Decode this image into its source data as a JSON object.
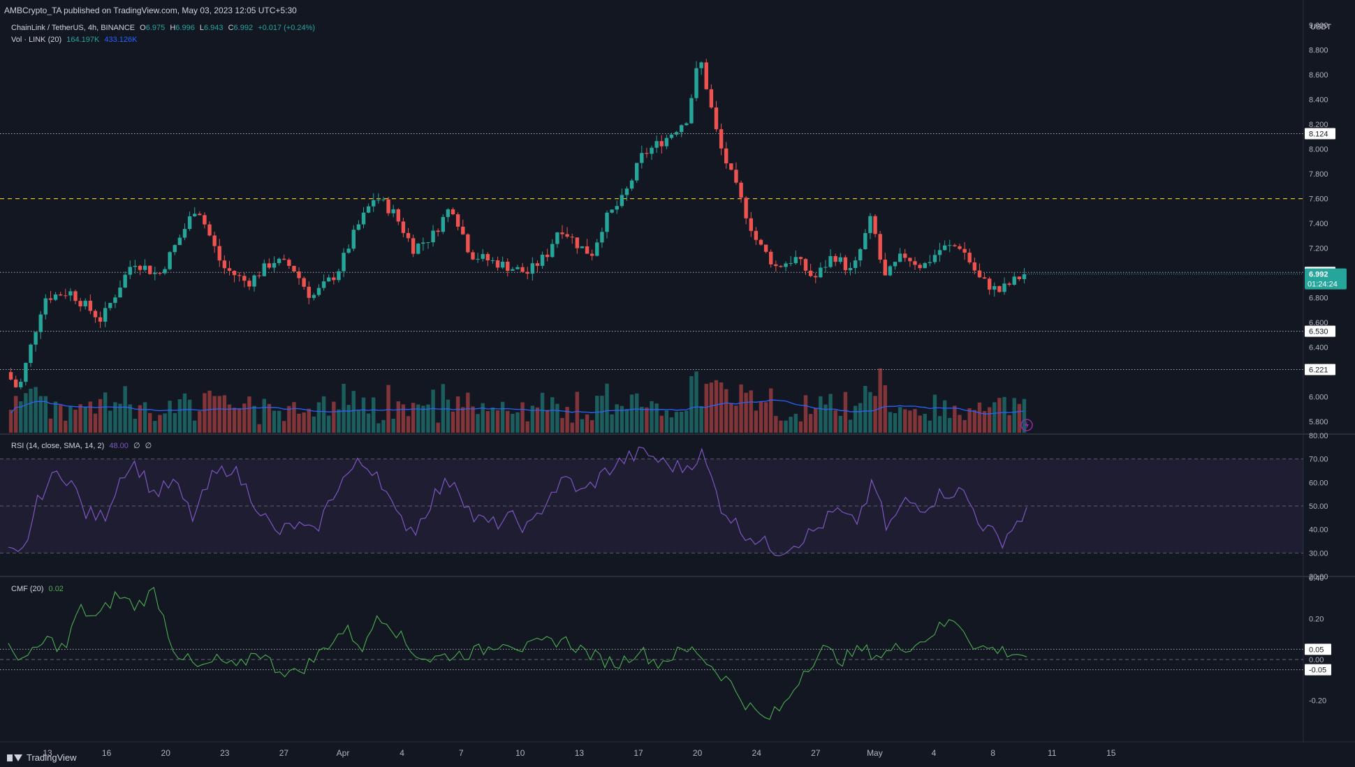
{
  "header": {
    "publish": "AMBCrypto_TA published on TradingView.com, May 03, 2023 12:05 UTC+5:30",
    "symbol": "ChainLink / TetherUS, 4h, BINANCE",
    "o_label": "O",
    "o_val": "6.975",
    "h_label": "H",
    "h_val": "6.996",
    "l_label": "L",
    "l_val": "6.943",
    "c_label": "C",
    "c_val": "6.992",
    "change": "+0.017 (+0.24%)",
    "vol_label": "Vol · LINK (20)",
    "vol_val": "164.197K",
    "vol_ma": "433.126K",
    "rsi_label": "RSI (14, close, SMA, 14, 2)",
    "rsi_val": "48.00",
    "rsi_na1": "∅",
    "rsi_na2": "∅",
    "cmf_label": "CMF (20)",
    "cmf_val": "0.02"
  },
  "footer": {
    "brand": "TradingView"
  },
  "colors": {
    "bg": "#131722",
    "up": "#26a69a",
    "down": "#ef5350",
    "rsi": "#7e57c2",
    "cmf": "#4caf50",
    "volma": "#2962ff",
    "level": "#d1d4dc",
    "resistance": "#e6c229"
  },
  "chart_data": [
    {
      "type": "candlestick",
      "title": "ChainLink / TetherUS, 4h, BINANCE",
      "currency": "USDT",
      "ylim": [
        5.7,
        9.0
      ],
      "y_ticks": [
        "9.000",
        "8.800",
        "8.600",
        "8.400",
        "8.200",
        "8.000",
        "7.800",
        "7.600",
        "7.400",
        "7.200",
        "7.000",
        "6.800",
        "6.600",
        "6.400",
        "6.200",
        "6.000",
        "5.800"
      ],
      "x_ticks": [
        "13",
        "16",
        "20",
        "23",
        "27",
        "Apr",
        "4",
        "7",
        "10",
        "13",
        "17",
        "20",
        "24",
        "27",
        "May",
        "4",
        "8",
        "11",
        "15"
      ],
      "price_path": [
        [
          0,
          6.2
        ],
        [
          0.02,
          6.05
        ],
        [
          0.06,
          6.8
        ],
        [
          0.1,
          6.85
        ],
        [
          0.15,
          6.62
        ],
        [
          0.2,
          7.1
        ],
        [
          0.24,
          6.98
        ],
        [
          0.28,
          7.35
        ],
        [
          0.3,
          7.55
        ],
        [
          0.34,
          7.05
        ],
        [
          0.38,
          6.92
        ],
        [
          0.42,
          7.1
        ],
        [
          0.45,
          7.05
        ],
        [
          0.48,
          6.8
        ],
        [
          0.52,
          7.0
        ],
        [
          0.55,
          7.35
        ],
        [
          0.58,
          7.62
        ],
        [
          0.61,
          7.48
        ],
        [
          0.64,
          7.2
        ],
        [
          0.67,
          7.3
        ],
        [
          0.7,
          7.55
        ],
        [
          0.73,
          7.15
        ],
        [
          0.76,
          7.1
        ],
        [
          0.79,
          7.05
        ],
        [
          0.82,
          7.0
        ],
        [
          0.85,
          7.15
        ],
        [
          0.87,
          7.38
        ],
        [
          0.9,
          7.22
        ],
        [
          0.92,
          7.15
        ],
        [
          0.94,
          7.42
        ],
        [
          0.97,
          7.6
        ],
        [
          1.0,
          7.95
        ],
        [
          1.04,
          8.1
        ],
        [
          1.07,
          8.25
        ],
        [
          1.09,
          8.75
        ],
        [
          1.12,
          8.05
        ],
        [
          1.15,
          7.65
        ],
        [
          1.18,
          7.25
        ],
        [
          1.21,
          7.05
        ],
        [
          1.24,
          7.12
        ],
        [
          1.27,
          6.95
        ],
        [
          1.3,
          7.15
        ],
        [
          1.33,
          7.0
        ],
        [
          1.36,
          7.45
        ],
        [
          1.38,
          6.95
        ],
        [
          1.41,
          7.15
        ],
        [
          1.44,
          7.05
        ],
        [
          1.47,
          7.2
        ],
        [
          1.5,
          7.22
        ],
        [
          1.53,
          6.95
        ],
        [
          1.56,
          6.85
        ],
        [
          1.6,
          6.992
        ]
      ],
      "last_price": "6.992",
      "countdown": "01:24:24",
      "levels": [
        {
          "value": 8.124,
          "label": "8.124",
          "style": "dotted"
        },
        {
          "value": 7.6,
          "label": "",
          "style": "dashed-yellow"
        },
        {
          "value": 7.005,
          "label": "7.005",
          "style": "dotted"
        },
        {
          "value": 6.53,
          "label": "6.530",
          "style": "dotted"
        },
        {
          "value": 6.221,
          "label": "6.221",
          "style": "dotted"
        }
      ]
    },
    {
      "type": "bar",
      "title": "Vol · LINK (20)",
      "last_value": "164.197K",
      "ma_value": "433.126K"
    },
    {
      "type": "line",
      "title": "RSI (14, close, SMA, 14, 2)",
      "ylim": [
        20,
        80
      ],
      "y_ticks": [
        "80.00",
        "70.00",
        "60.00",
        "50.00",
        "40.00",
        "30.00",
        "20.00"
      ],
      "bands": [
        70,
        50,
        30
      ],
      "path": [
        [
          0,
          30
        ],
        [
          0.02,
          28
        ],
        [
          0.05,
          55
        ],
        [
          0.08,
          65
        ],
        [
          0.1,
          60
        ],
        [
          0.12,
          47
        ],
        [
          0.15,
          45
        ],
        [
          0.18,
          65
        ],
        [
          0.2,
          68
        ],
        [
          0.23,
          55
        ],
        [
          0.26,
          60
        ],
        [
          0.29,
          45
        ],
        [
          0.32,
          62
        ],
        [
          0.35,
          67
        ],
        [
          0.38,
          55
        ],
        [
          0.42,
          38
        ],
        [
          0.45,
          42
        ],
        [
          0.48,
          38
        ],
        [
          0.52,
          60
        ],
        [
          0.55,
          68
        ],
        [
          0.58,
          65
        ],
        [
          0.61,
          45
        ],
        [
          0.64,
          40
        ],
        [
          0.67,
          55
        ],
        [
          0.7,
          62
        ],
        [
          0.73,
          45
        ],
        [
          0.76,
          42
        ],
        [
          0.79,
          45
        ],
        [
          0.82,
          40
        ],
        [
          0.85,
          55
        ],
        [
          0.88,
          62
        ],
        [
          0.9,
          55
        ],
        [
          0.94,
          65
        ],
        [
          0.97,
          70
        ],
        [
          1.0,
          73
        ],
        [
          1.03,
          68
        ],
        [
          1.06,
          66
        ],
        [
          1.09,
          72
        ],
        [
          1.12,
          50
        ],
        [
          1.15,
          40
        ],
        [
          1.18,
          35
        ],
        [
          1.21,
          31
        ],
        [
          1.24,
          35
        ],
        [
          1.27,
          40
        ],
        [
          1.3,
          48
        ],
        [
          1.33,
          42
        ],
        [
          1.36,
          60
        ],
        [
          1.38,
          40
        ],
        [
          1.41,
          52
        ],
        [
          1.44,
          50
        ],
        [
          1.47,
          56
        ],
        [
          1.5,
          56
        ],
        [
          1.53,
          42
        ],
        [
          1.56,
          35
        ],
        [
          1.6,
          48
        ]
      ],
      "last_value": "48.00"
    },
    {
      "type": "line",
      "title": "CMF (20)",
      "ylim": [
        -0.4,
        0.4
      ],
      "y_ticks": [
        "0.40",
        "0.20",
        "0.00",
        "-0.20"
      ],
      "bands": [
        0.05,
        0.0,
        -0.05
      ],
      "band_labels": [
        "0.05",
        "",
        "-0.05"
      ],
      "path": [
        [
          0,
          0.05
        ],
        [
          0.03,
          0.0
        ],
        [
          0.06,
          0.1
        ],
        [
          0.09,
          0.05
        ],
        [
          0.11,
          0.25
        ],
        [
          0.14,
          0.2
        ],
        [
          0.17,
          0.32
        ],
        [
          0.2,
          0.26
        ],
        [
          0.23,
          0.34
        ],
        [
          0.26,
          0.05
        ],
        [
          0.3,
          -0.05
        ],
        [
          0.33,
          0.0
        ],
        [
          0.36,
          -0.05
        ],
        [
          0.39,
          0.05
        ],
        [
          0.42,
          -0.04
        ],
        [
          0.45,
          -0.07
        ],
        [
          0.48,
          0.0
        ],
        [
          0.51,
          0.1
        ],
        [
          0.53,
          0.15
        ],
        [
          0.56,
          0.05
        ],
        [
          0.58,
          0.23
        ],
        [
          0.6,
          0.18
        ],
        [
          0.63,
          0.05
        ],
        [
          0.66,
          0.0
        ],
        [
          0.69,
          0.02
        ],
        [
          0.72,
          0.03
        ],
        [
          0.75,
          0.05
        ],
        [
          0.78,
          0.1
        ],
        [
          0.81,
          0.05
        ],
        [
          0.84,
          0.08
        ],
        [
          0.87,
          0.1
        ],
        [
          0.9,
          0.05
        ],
        [
          0.93,
          0.0
        ],
        [
          0.96,
          -0.02
        ],
        [
          0.99,
          0.05
        ],
        [
          1.02,
          -0.02
        ],
        [
          1.05,
          0.03
        ],
        [
          1.08,
          0.05
        ],
        [
          1.1,
          -0.02
        ],
        [
          1.13,
          -0.1
        ],
        [
          1.16,
          -0.22
        ],
        [
          1.19,
          -0.3
        ],
        [
          1.22,
          -0.22
        ],
        [
          1.25,
          -0.05
        ],
        [
          1.28,
          0.05
        ],
        [
          1.31,
          0.0
        ],
        [
          1.34,
          0.05
        ],
        [
          1.37,
          0.02
        ],
        [
          1.4,
          0.06
        ],
        [
          1.43,
          0.08
        ],
        [
          1.46,
          0.15
        ],
        [
          1.49,
          0.2
        ],
        [
          1.52,
          0.06
        ],
        [
          1.55,
          0.05
        ],
        [
          1.6,
          0.02
        ]
      ],
      "last_value": "0.02"
    }
  ]
}
